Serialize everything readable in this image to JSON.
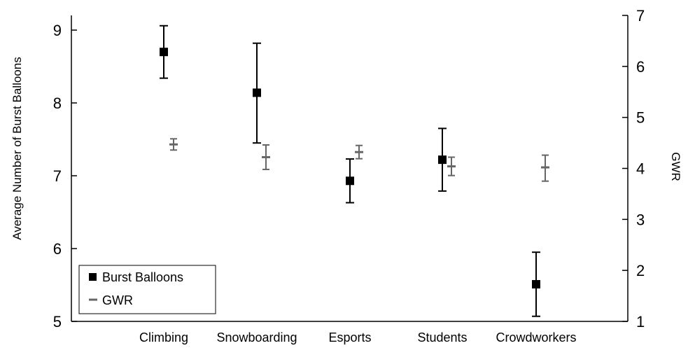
{
  "chart_data": {
    "type": "scatter",
    "categories": [
      "Climbing",
      "Snowboarding",
      "Esports",
      "Students",
      "Crowdworkers"
    ],
    "ylabel": "Average Number of Burst Balloons",
    "y2label": "GWR",
    "ylim": [
      5,
      9
    ],
    "y2lim": [
      1,
      7
    ],
    "yticks": [
      "5",
      "6",
      "7",
      "8",
      "9"
    ],
    "y2ticks": [
      "1",
      "2",
      "3",
      "4",
      "5",
      "6",
      "7"
    ],
    "legend_position": "bottom-left",
    "series": [
      {
        "name": "Burst Balloons",
        "axis": "left",
        "marker": "square",
        "color": "#000000",
        "values": [
          8.7,
          8.14,
          6.93,
          7.22,
          5.51
        ],
        "error_low": [
          8.34,
          7.45,
          6.63,
          6.79,
          5.07
        ],
        "error_high": [
          9.06,
          8.82,
          7.23,
          7.65,
          5.95
        ]
      },
      {
        "name": "GWR",
        "axis": "right",
        "marker": "dash",
        "color": "#666666",
        "values": [
          4.47,
          4.22,
          4.32,
          4.04,
          4.02
        ],
        "error_low": [
          4.36,
          3.98,
          4.19,
          3.86,
          3.75
        ],
        "error_high": [
          4.58,
          4.46,
          4.45,
          4.22,
          4.26
        ]
      }
    ]
  }
}
